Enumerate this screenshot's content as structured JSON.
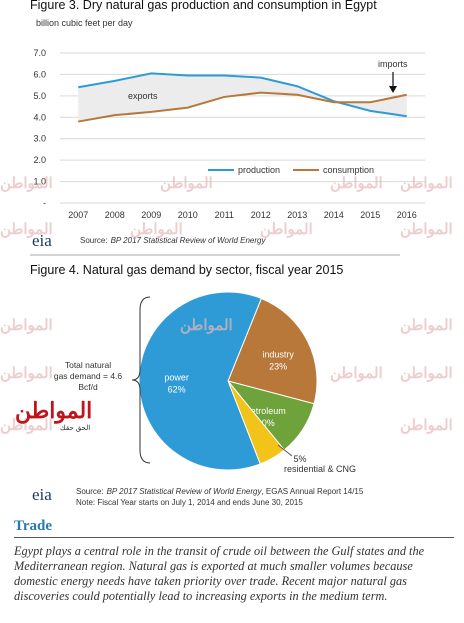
{
  "watermark": "المواطن",
  "logo": {
    "name": "المواطن",
    "tagline": "الحق حقك"
  },
  "eia": "eia",
  "chart_data": [
    {
      "type": "line",
      "title": "Figure 3. Dry natural gas production and consumption in Egypt",
      "y_label": "billion cubic feet per day",
      "categories": [
        "2007",
        "2008",
        "2009",
        "2010",
        "2011",
        "2012",
        "2013",
        "2014",
        "2015",
        "2016"
      ],
      "series": [
        {
          "name": "production",
          "color": "#2e9bd6",
          "values": [
            5.4,
            5.7,
            6.05,
            5.95,
            5.95,
            5.85,
            5.45,
            4.75,
            4.3,
            4.05
          ]
        },
        {
          "name": "consumption",
          "color": "#b8783a",
          "values": [
            3.8,
            4.1,
            4.25,
            4.45,
            4.95,
            5.15,
            5.05,
            4.7,
            4.7,
            5.05
          ]
        }
      ],
      "ylim": [
        0,
        7
      ],
      "yticks": [
        {
          "value": 0,
          "label": "-"
        },
        {
          "value": 1,
          "label": "1.0"
        },
        {
          "value": 2,
          "label": "2.0"
        },
        {
          "value": 3,
          "label": "3.0"
        },
        {
          "value": 4,
          "label": "4.0"
        },
        {
          "value": 5,
          "label": "5.0"
        },
        {
          "value": 6,
          "label": "6.0"
        },
        {
          "value": 7,
          "label": "7.0"
        }
      ],
      "grid": true,
      "legend": "bottom",
      "annotations": [
        "exports",
        "imports"
      ],
      "source_label": "Source:",
      "source": "BP 2017 Statistical Review of World Energy"
    },
    {
      "type": "pie",
      "title": "Figure 4. Natural gas demand by sector, fiscal year 2015",
      "categories": [
        "industry",
        "petroleum",
        "residential & CNG",
        "power"
      ],
      "values": [
        23,
        10,
        5,
        62
      ],
      "value_labels": [
        "23%",
        "10%",
        "5%",
        "62%"
      ],
      "colors": [
        "#b8783a",
        "#6ea23a",
        "#f2c318",
        "#2e9bd6"
      ],
      "annotation": "Total natural gas demand = 4.6 Bcf/d",
      "source_label": "Source:",
      "source": "BP 2017 Statistical Review of World Energy",
      "source_extra": ", EGAS Annual Report 14/15",
      "note": "Note: Fiscal Year starts on July 1, 2014 and ends June 30, 2015"
    }
  ],
  "section": {
    "heading": "Trade",
    "body": "Egypt plays a central role in the transit of crude oil between the Gulf states and the Mediterranean region. Natural gas is exported at much smaller volumes because domestic energy needs have taken priority over trade. Recent major natural gas discoveries could potentially lead to increasing exports in the medium term."
  }
}
